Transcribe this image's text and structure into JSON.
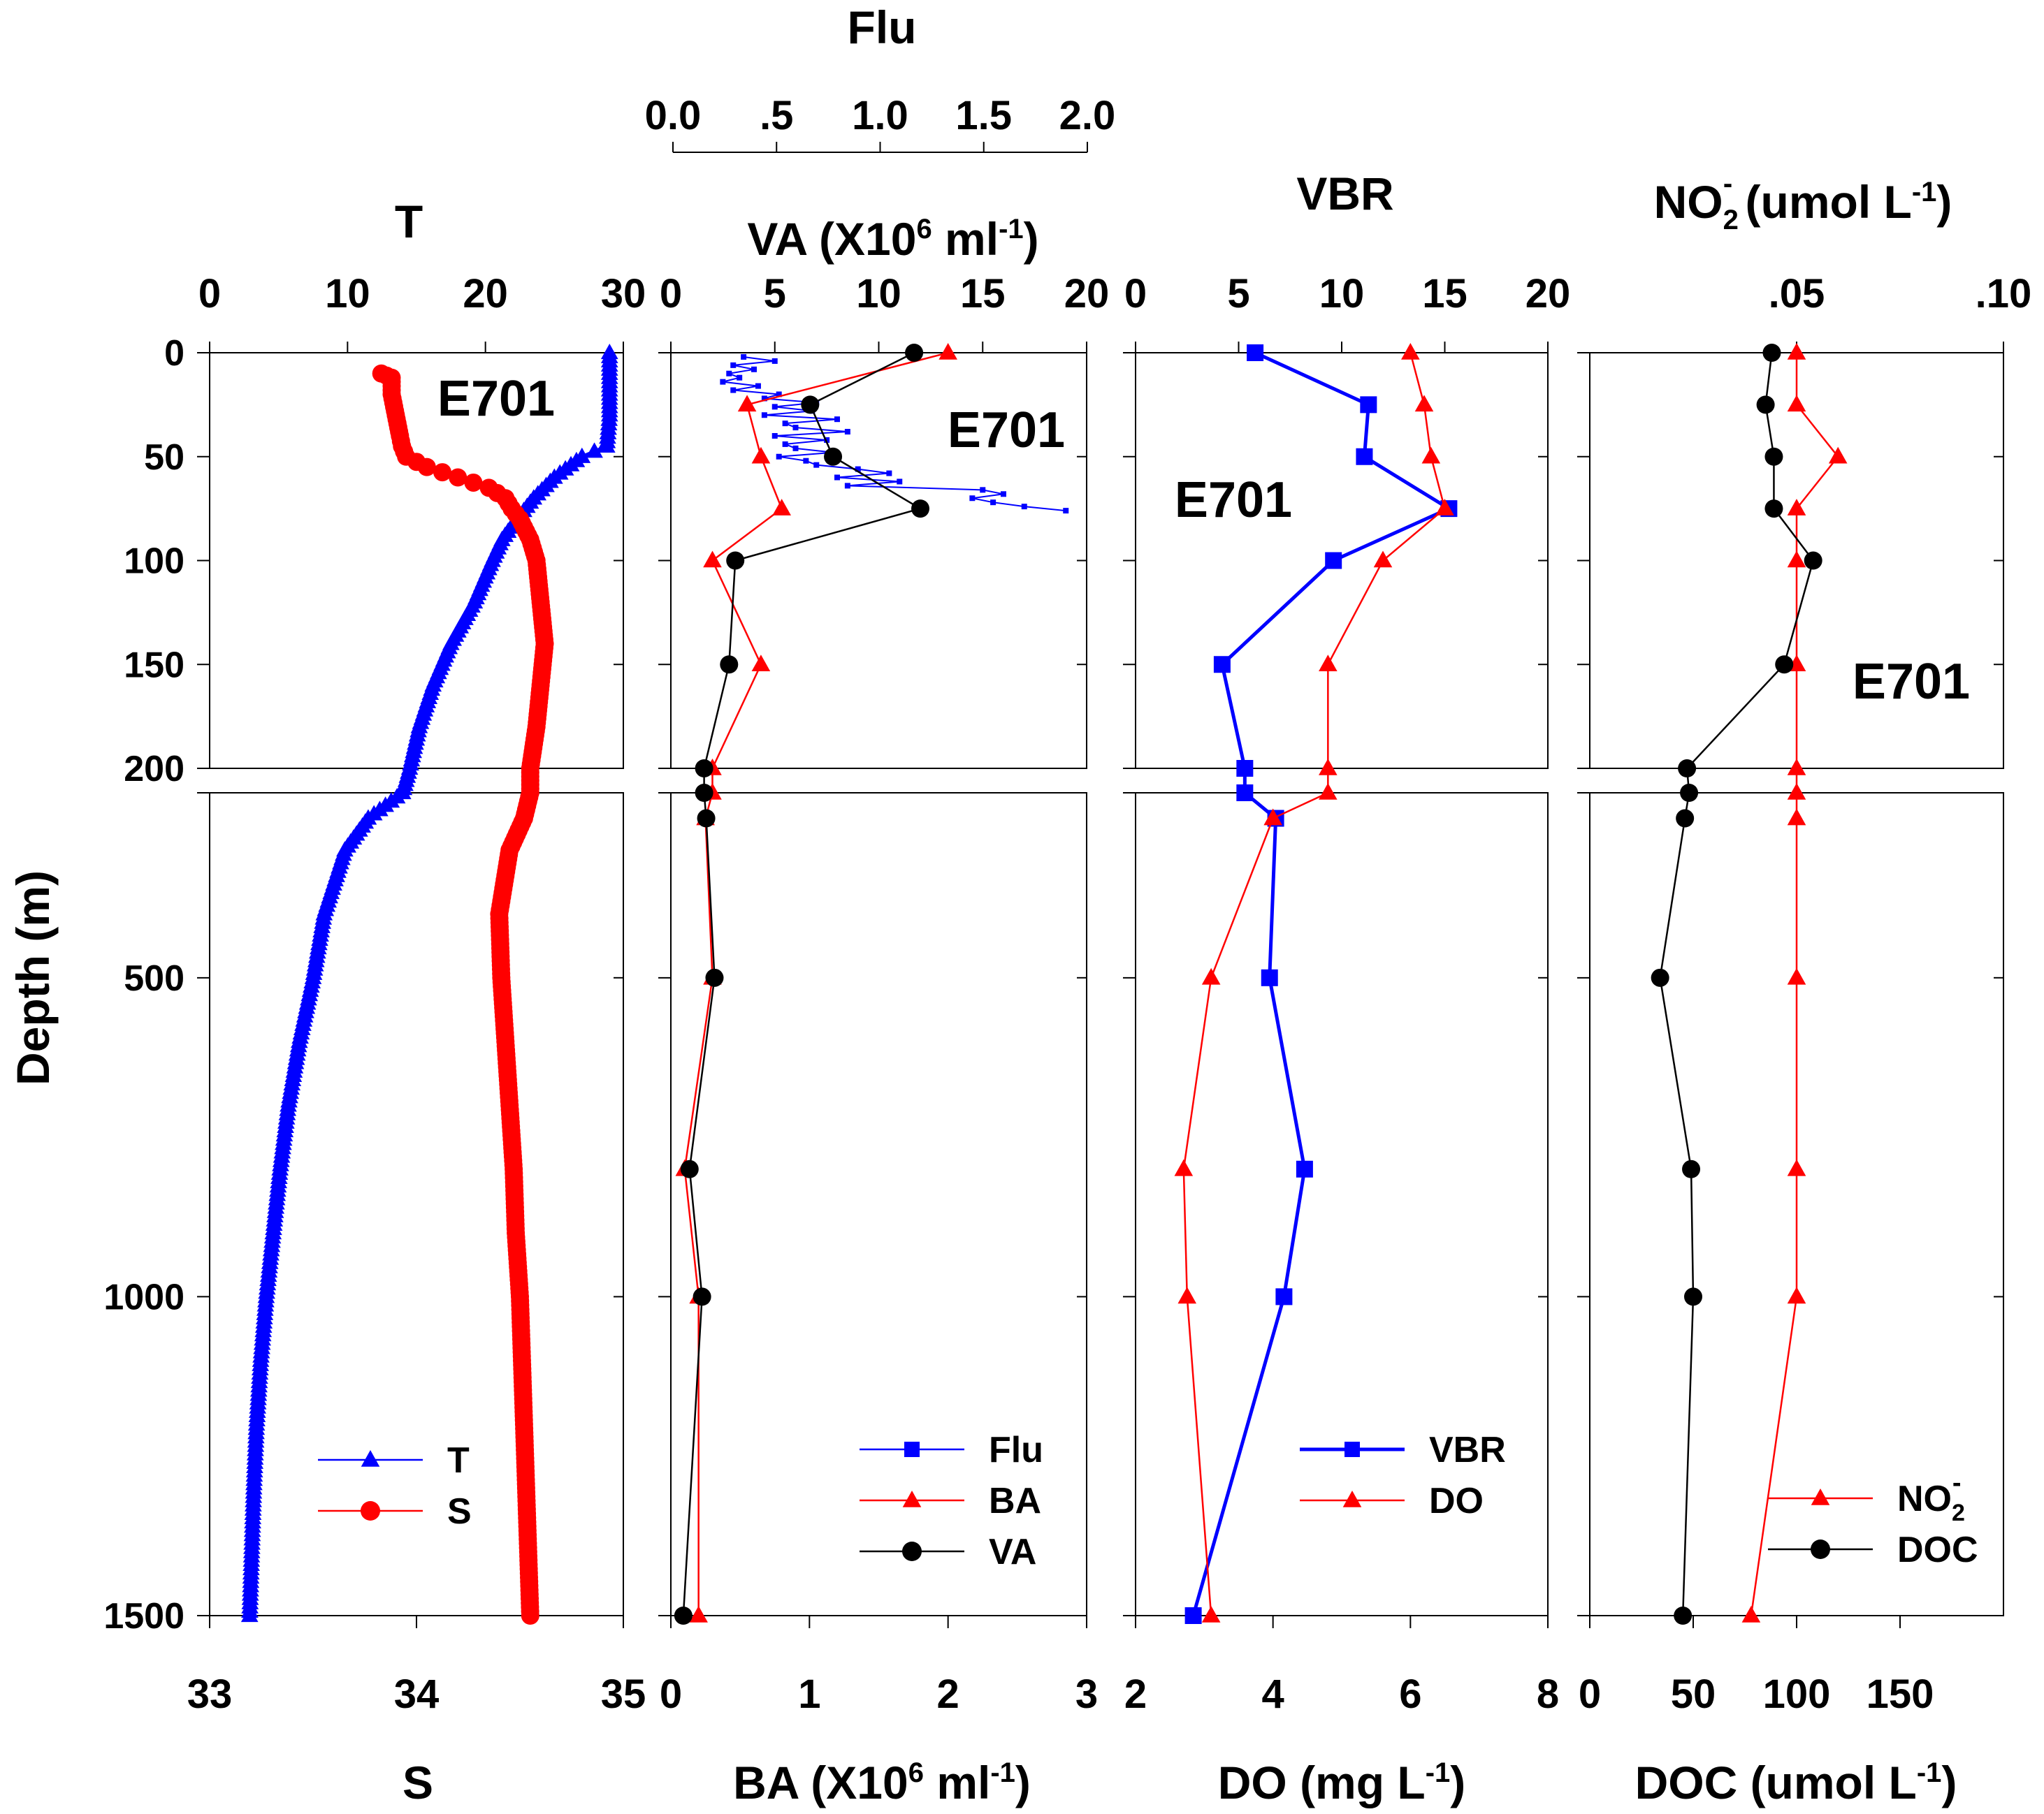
{
  "figure": {
    "depth_label": "Depth (m)",
    "y_ticks_top": [
      "0",
      "50",
      "100",
      "150",
      "200"
    ],
    "y_ticks_bottom": [
      "500",
      "1000",
      "1500"
    ]
  },
  "chart_data": [
    {
      "type": "line",
      "panel": "T-S",
      "station": "E701",
      "axes": {
        "top": {
          "title": "T",
          "range": [
            0,
            30
          ],
          "ticks": [
            "0",
            "10",
            "20",
            "30"
          ]
        },
        "bottom": {
          "title": "S",
          "range": [
            33,
            35
          ],
          "ticks": [
            "33",
            "34",
            "35"
          ]
        },
        "y": {
          "title": "Depth (m)",
          "top_range": [
            0,
            200
          ],
          "bottom_range": [
            210,
            1500
          ]
        }
      },
      "legend": {
        "position": "bottom-left",
        "entries": [
          "T",
          "S"
        ]
      },
      "series": [
        {
          "name": "T",
          "axis": "top",
          "color": "#0000ff",
          "marker": "triangle",
          "depth": [
            0,
            10,
            30,
            45,
            50,
            60,
            70,
            80,
            90,
            100,
            120,
            140,
            160,
            180,
            200,
            210,
            250,
            300,
            400,
            500,
            600,
            700,
            800,
            900,
            1000,
            1100,
            1200,
            1300,
            1400,
            1500
          ],
          "values": [
            29,
            29,
            29,
            28.8,
            27,
            25,
            23.5,
            22.3,
            21.2,
            20.5,
            19.2,
            17.5,
            16.2,
            15.2,
            14.5,
            14,
            11.5,
            9.8,
            8.3,
            7.5,
            6.5,
            5.7,
            5.1,
            4.6,
            4.1,
            3.7,
            3.4,
            3.2,
            3.05,
            2.9
          ]
        },
        {
          "name": "S",
          "axis": "bottom",
          "color": "#ff0000",
          "marker": "circle",
          "depth": [
            10,
            12,
            20,
            30,
            40,
            45,
            50,
            55,
            60,
            65,
            70,
            75,
            80,
            90,
            100,
            120,
            140,
            160,
            180,
            200,
            210,
            250,
            300,
            400,
            500,
            600,
            700,
            800,
            900,
            1000,
            1100,
            1200,
            1300,
            1400,
            1500
          ],
          "values": [
            33.83,
            33.88,
            33.88,
            33.9,
            33.92,
            33.93,
            33.95,
            34.05,
            34.2,
            34.35,
            34.43,
            34.46,
            34.5,
            34.55,
            34.58,
            34.6,
            34.62,
            34.6,
            34.58,
            34.55,
            34.55,
            34.52,
            34.45,
            34.4,
            34.41,
            34.43,
            34.45,
            34.47,
            34.48,
            34.5,
            34.51,
            34.52,
            34.53,
            34.54,
            34.55
          ]
        }
      ]
    },
    {
      "type": "line",
      "panel": "Flu-VA-BA",
      "station": "E701",
      "axes": {
        "top_outer": {
          "title": "Flu",
          "range": [
            0,
            2
          ],
          "ticks": [
            "0.0",
            ".5",
            "1.0",
            "1.5",
            "2.0"
          ]
        },
        "top": {
          "title": "VA (X10",
          "sup": "6",
          "title_mid": " ml",
          "sup2": "-1",
          "title_end": ")",
          "range": [
            0,
            20
          ],
          "ticks": [
            "0",
            "5",
            "10",
            "15",
            "20"
          ]
        },
        "bottom": {
          "title": "BA (X10",
          "sup": "6",
          "title_mid": " ml",
          "sup2": "-1",
          "title_end": ")",
          "range": [
            0,
            3
          ],
          "ticks": [
            "0",
            "1",
            "2",
            "3"
          ]
        },
        "y": {
          "title": "Depth (m)",
          "top_range": [
            0,
            200
          ],
          "bottom_range": [
            210,
            1500
          ]
        }
      },
      "legend": {
        "position": "bottom-right",
        "entries": [
          "Flu",
          "BA",
          "VA"
        ]
      },
      "series": [
        {
          "name": "Flu",
          "axis": "top_outer",
          "color": "#0000ff",
          "marker": "small-square",
          "depth": [
            2,
            4,
            6,
            8,
            10,
            12,
            14,
            16,
            18,
            20,
            22,
            24,
            26,
            28,
            30,
            32,
            34,
            36,
            38,
            40,
            42,
            44,
            46,
            48,
            50,
            52,
            54,
            56,
            58,
            60,
            62,
            64,
            66,
            68,
            70,
            72,
            74,
            76
          ],
          "values": [
            0.35,
            0.5,
            0.3,
            0.4,
            0.28,
            0.33,
            0.25,
            0.42,
            0.3,
            0.52,
            0.45,
            0.7,
            0.5,
            0.68,
            0.45,
            0.8,
            0.55,
            0.6,
            0.85,
            0.5,
            0.75,
            0.55,
            0.6,
            0.78,
            0.52,
            0.65,
            0.7,
            0.9,
            1.05,
            0.8,
            1.1,
            0.85,
            1.5,
            1.6,
            1.45,
            1.55,
            1.7,
            1.9
          ]
        },
        {
          "name": "BA",
          "axis": "bottom",
          "color": "#ff0000",
          "marker": "triangle",
          "depth": [
            0,
            25,
            50,
            75,
            100,
            150,
            200,
            210,
            250,
            500,
            800,
            1000,
            1500
          ],
          "values": [
            2.0,
            0.55,
            0.65,
            0.8,
            0.3,
            0.65,
            0.3,
            0.3,
            0.25,
            0.3,
            0.1,
            0.2,
            0.2
          ]
        },
        {
          "name": "VA",
          "axis": "top",
          "color": "#000000",
          "marker": "circle",
          "depth": [
            0,
            25,
            50,
            75,
            100,
            150,
            200,
            210,
            250,
            500,
            800,
            1000,
            1500
          ],
          "values": [
            11.7,
            6.7,
            7.8,
            12.0,
            3.1,
            2.8,
            1.6,
            1.6,
            1.7,
            2.1,
            0.9,
            1.5,
            0.6
          ]
        }
      ]
    },
    {
      "type": "line",
      "panel": "VBR-DO",
      "station": "E701",
      "axes": {
        "top": {
          "title": "VBR",
          "range": [
            0,
            20
          ],
          "ticks": [
            "0",
            "5",
            "10",
            "15",
            "20"
          ]
        },
        "bottom": {
          "title": "DO (mg L",
          "sup": "-1",
          "title_end": ")",
          "range": [
            2,
            8
          ],
          "ticks": [
            "2",
            "4",
            "6",
            "8"
          ]
        },
        "y": {
          "title": "Depth (m)",
          "top_range": [
            0,
            200
          ],
          "bottom_range": [
            210,
            1500
          ]
        }
      },
      "legend": {
        "position": "bottom-right",
        "entries": [
          "VBR",
          "DO"
        ]
      },
      "series": [
        {
          "name": "VBR",
          "axis": "top",
          "color": "#0000ff",
          "marker": "square",
          "depth": [
            0,
            25,
            50,
            75,
            100,
            150,
            200,
            210,
            250,
            500,
            800,
            1000,
            1500
          ],
          "values": [
            5.8,
            11.3,
            11.1,
            15.2,
            9.6,
            4.2,
            5.3,
            5.3,
            6.8,
            6.5,
            8.2,
            7.2,
            2.8
          ]
        },
        {
          "name": "DO",
          "axis": "bottom",
          "color": "#ff0000",
          "marker": "triangle",
          "depth": [
            0,
            25,
            50,
            75,
            100,
            150,
            200,
            210,
            250,
            500,
            800,
            1000,
            1500
          ],
          "values": [
            6.0,
            6.2,
            6.3,
            6.5,
            5.6,
            4.8,
            4.8,
            4.8,
            4.0,
            3.1,
            2.7,
            2.75,
            3.1
          ]
        }
      ]
    },
    {
      "type": "line",
      "panel": "NO2-DOC",
      "station": "E701",
      "axes": {
        "top": {
          "title": "NO",
          "sub": "2",
          "sup": "-",
          "title_end": " (umol L",
          "sup2": "-1",
          "title_close": ")",
          "range": [
            0,
            0.1
          ],
          "ticks": [
            ".05",
            ".10"
          ],
          "tick_values": [
            0.05,
            0.1
          ]
        },
        "bottom": {
          "title": "DOC (umol L",
          "sup": "-1",
          "title_end": ")",
          "range": [
            0,
            200
          ],
          "ticks": [
            "0",
            "50",
            "100",
            "150"
          ]
        },
        "y": {
          "title": "Depth (m)",
          "top_range": [
            0,
            200
          ],
          "bottom_range": [
            210,
            1500
          ]
        }
      },
      "legend": {
        "position": "bottom-right",
        "entries": [
          "NO2-",
          "DOC"
        ],
        "entry_labels": [
          {
            "base": "NO",
            "sub": "2",
            "sup": "-"
          },
          {
            "base": "DOC"
          }
        ]
      },
      "series": [
        {
          "name": "NO2-",
          "axis": "top",
          "color": "#ff0000",
          "marker": "triangle",
          "depth": [
            0,
            25,
            50,
            75,
            100,
            150,
            200,
            210,
            250,
            500,
            800,
            1000,
            1500
          ],
          "values": [
            0.05,
            0.05,
            0.06,
            0.05,
            0.05,
            0.05,
            0.05,
            0.05,
            0.05,
            0.05,
            0.05,
            0.05,
            0.039
          ]
        },
        {
          "name": "DOC",
          "axis": "bottom",
          "color": "#000000",
          "marker": "circle",
          "depth": [
            0,
            25,
            50,
            75,
            100,
            150,
            200,
            210,
            250,
            500,
            800,
            1000,
            1500
          ],
          "values": [
            88,
            85,
            89,
            89,
            108,
            94,
            47,
            48,
            46,
            34,
            49,
            50,
            45
          ]
        }
      ]
    }
  ]
}
